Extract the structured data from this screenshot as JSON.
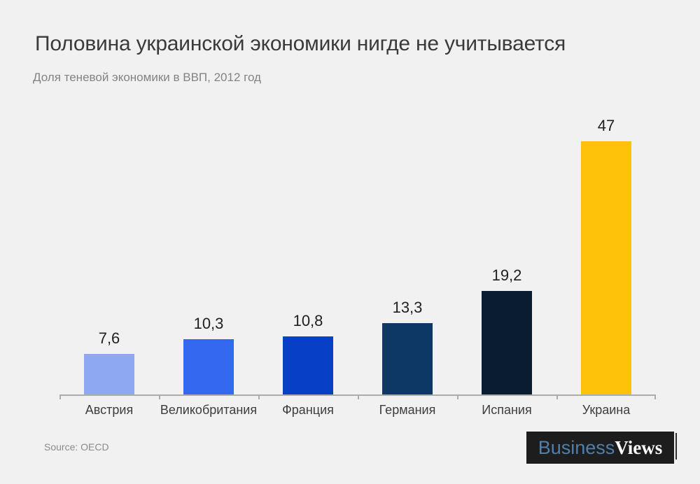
{
  "header": {
    "title": "Половина украинской экономики нигде не учитывается",
    "subtitle": "Доля теневой экономики в ВВП, 2012 год"
  },
  "chart_data": {
    "type": "bar",
    "title": "Половина украинской экономики нигде не учитывается",
    "subtitle": "Доля теневой экономики в ВВП, 2012 год",
    "categories": [
      "Австрия",
      "Великобритания",
      "Франция",
      "Германия",
      "Испания",
      "Украина"
    ],
    "values": [
      7.6,
      10.3,
      10.8,
      13.3,
      19.2,
      47
    ],
    "value_labels": [
      "7,6",
      "10,3",
      "10,8",
      "13,3",
      "19,2",
      "47"
    ],
    "slugs": [
      "austria",
      "uk",
      "france",
      "germany",
      "spain",
      "ukraine"
    ],
    "colors": [
      "#8EA9F1",
      "#3368EF",
      "#0740C4",
      "#0D3765",
      "#0A1C30",
      "#FEC20B"
    ],
    "xlabel": "",
    "ylabel": "",
    "ylim": [
      0,
      51.2
    ],
    "grid": false,
    "legend": false,
    "axis_color": "#ACACAC",
    "value_label_color": "#1F1F1F",
    "category_label_color": "#3D3D3D"
  },
  "footer": {
    "source": "Source: OECD",
    "logo": {
      "part1": "Business",
      "part2": "Views",
      "part1_color": "#4D80AD",
      "part2_color": "#FFFFFF",
      "background": "#1D1D1D"
    }
  },
  "page": {
    "background": "#F1F1F1"
  }
}
